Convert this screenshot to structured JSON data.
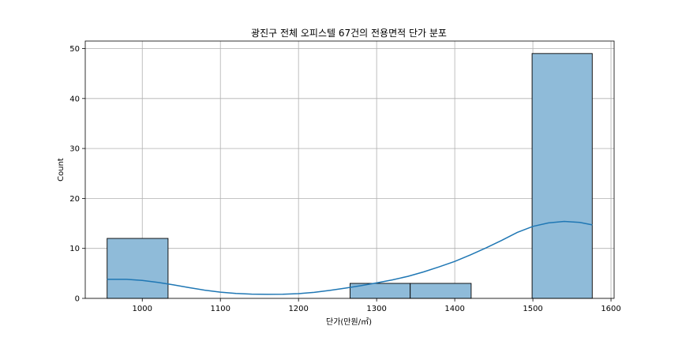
{
  "chart_data": {
    "type": "bar",
    "title": "광진구 전체 오피스텔 67건의 전용면적 단가 분포",
    "xlabel": "단가(만원/㎡)",
    "ylabel": "Count",
    "xlim": [
      927,
      1604
    ],
    "ylim": [
      0,
      51.5
    ],
    "xticks": [
      1000,
      1100,
      1200,
      1300,
      1400,
      1500,
      1600
    ],
    "yticks": [
      0,
      10,
      20,
      30,
      40,
      50
    ],
    "grid": true,
    "bins": [
      {
        "x0": 955,
        "x1": 1033,
        "count": 12
      },
      {
        "x0": 1033,
        "x1": 1111,
        "count": 0
      },
      {
        "x0": 1111,
        "x1": 1188,
        "count": 0
      },
      {
        "x0": 1188,
        "x1": 1266,
        "count": 0
      },
      {
        "x0": 1266,
        "x1": 1343,
        "count": 3
      },
      {
        "x0": 1343,
        "x1": 1421,
        "count": 3
      },
      {
        "x0": 1421,
        "x1": 1499,
        "count": 0
      },
      {
        "x0": 1499,
        "x1": 1576,
        "count": 49
      }
    ],
    "kde": {
      "x": [
        955,
        980,
        1000,
        1020,
        1040,
        1060,
        1080,
        1100,
        1120,
        1140,
        1160,
        1180,
        1200,
        1220,
        1240,
        1260,
        1280,
        1300,
        1320,
        1340,
        1360,
        1380,
        1400,
        1420,
        1440,
        1460,
        1480,
        1500,
        1520,
        1540,
        1560,
        1576
      ],
      "y": [
        3.8,
        3.8,
        3.6,
        3.2,
        2.7,
        2.15,
        1.65,
        1.25,
        0.98,
        0.85,
        0.8,
        0.82,
        0.95,
        1.2,
        1.6,
        2.05,
        2.55,
        3.1,
        3.7,
        4.4,
        5.3,
        6.3,
        7.4,
        8.7,
        10.1,
        11.6,
        13.2,
        14.4,
        15.1,
        15.4,
        15.2,
        14.7
      ]
    },
    "colors": {
      "bar_fill": "#8fbbd9",
      "bar_edge": "#000000",
      "kde_line": "#1f77b4",
      "grid": "#b0b0b0"
    }
  }
}
